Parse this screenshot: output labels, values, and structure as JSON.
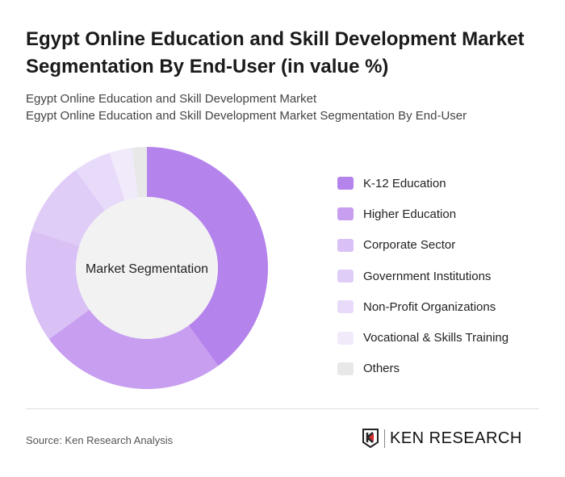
{
  "title": "Egypt Online Education and Skill Development Market Segmentation By End-User (in value %)",
  "subtitle1": "Egypt Online Education and Skill Development Market",
  "subtitle2": "Egypt Online Education and Skill Development Market Segmentation By End-User",
  "source": "Source: Ken Research Analysis",
  "logo_text": "KEN RESEARCH",
  "chart_data": {
    "type": "pie",
    "variant": "donut",
    "center_label": "Market Segmentation",
    "legend_position": "right",
    "categories": [
      "K-12 Education",
      "Higher Education",
      "Corporate Sector",
      "Government Institutions",
      "Non-Profit Organizations",
      "Vocational & Skills Training",
      "Others"
    ],
    "values": [
      40,
      25,
      15,
      10,
      5,
      3,
      2
    ],
    "colors": [
      "#b583ec",
      "#c79ef0",
      "#d9c0f5",
      "#e0cdf7",
      "#e8dbf9",
      "#f1eafb",
      "#e8e8e8"
    ]
  }
}
